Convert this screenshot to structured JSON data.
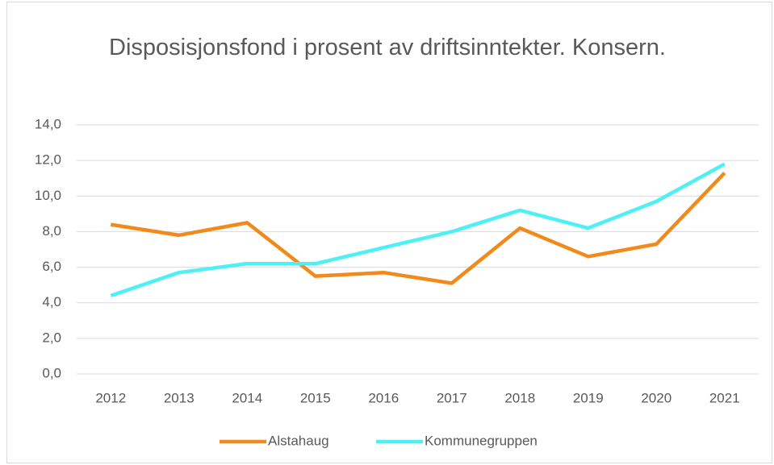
{
  "chart_data": {
    "type": "line",
    "title": "Disposisjonsfond i prosent av driftsinntekter. Konsern.",
    "categories": [
      "2012",
      "2013",
      "2014",
      "2015",
      "2016",
      "2017",
      "2018",
      "2019",
      "2020",
      "2021"
    ],
    "series": [
      {
        "name": "Alstahaug",
        "color": "#f28a1b",
        "values": [
          8.4,
          7.8,
          8.5,
          5.5,
          5.7,
          5.1,
          8.2,
          6.6,
          7.3,
          11.3
        ]
      },
      {
        "name": "Kommunegruppen",
        "color": "#4ef0f5",
        "values": [
          4.4,
          5.7,
          6.2,
          6.2,
          7.1,
          8.0,
          9.2,
          8.2,
          9.7,
          11.8
        ]
      }
    ],
    "ylim": [
      0,
      14
    ],
    "yticks": [
      {
        "value": 0,
        "label": "0,0"
      },
      {
        "value": 2,
        "label": "2,0"
      },
      {
        "value": 4,
        "label": "4,0"
      },
      {
        "value": 6,
        "label": "6,0"
      },
      {
        "value": 8,
        "label": "8,0"
      },
      {
        "value": 10,
        "label": "10,0"
      },
      {
        "value": 12,
        "label": "12,0"
      },
      {
        "value": 14,
        "label": "14,0"
      }
    ],
    "grid": true,
    "legend": "bottom"
  }
}
